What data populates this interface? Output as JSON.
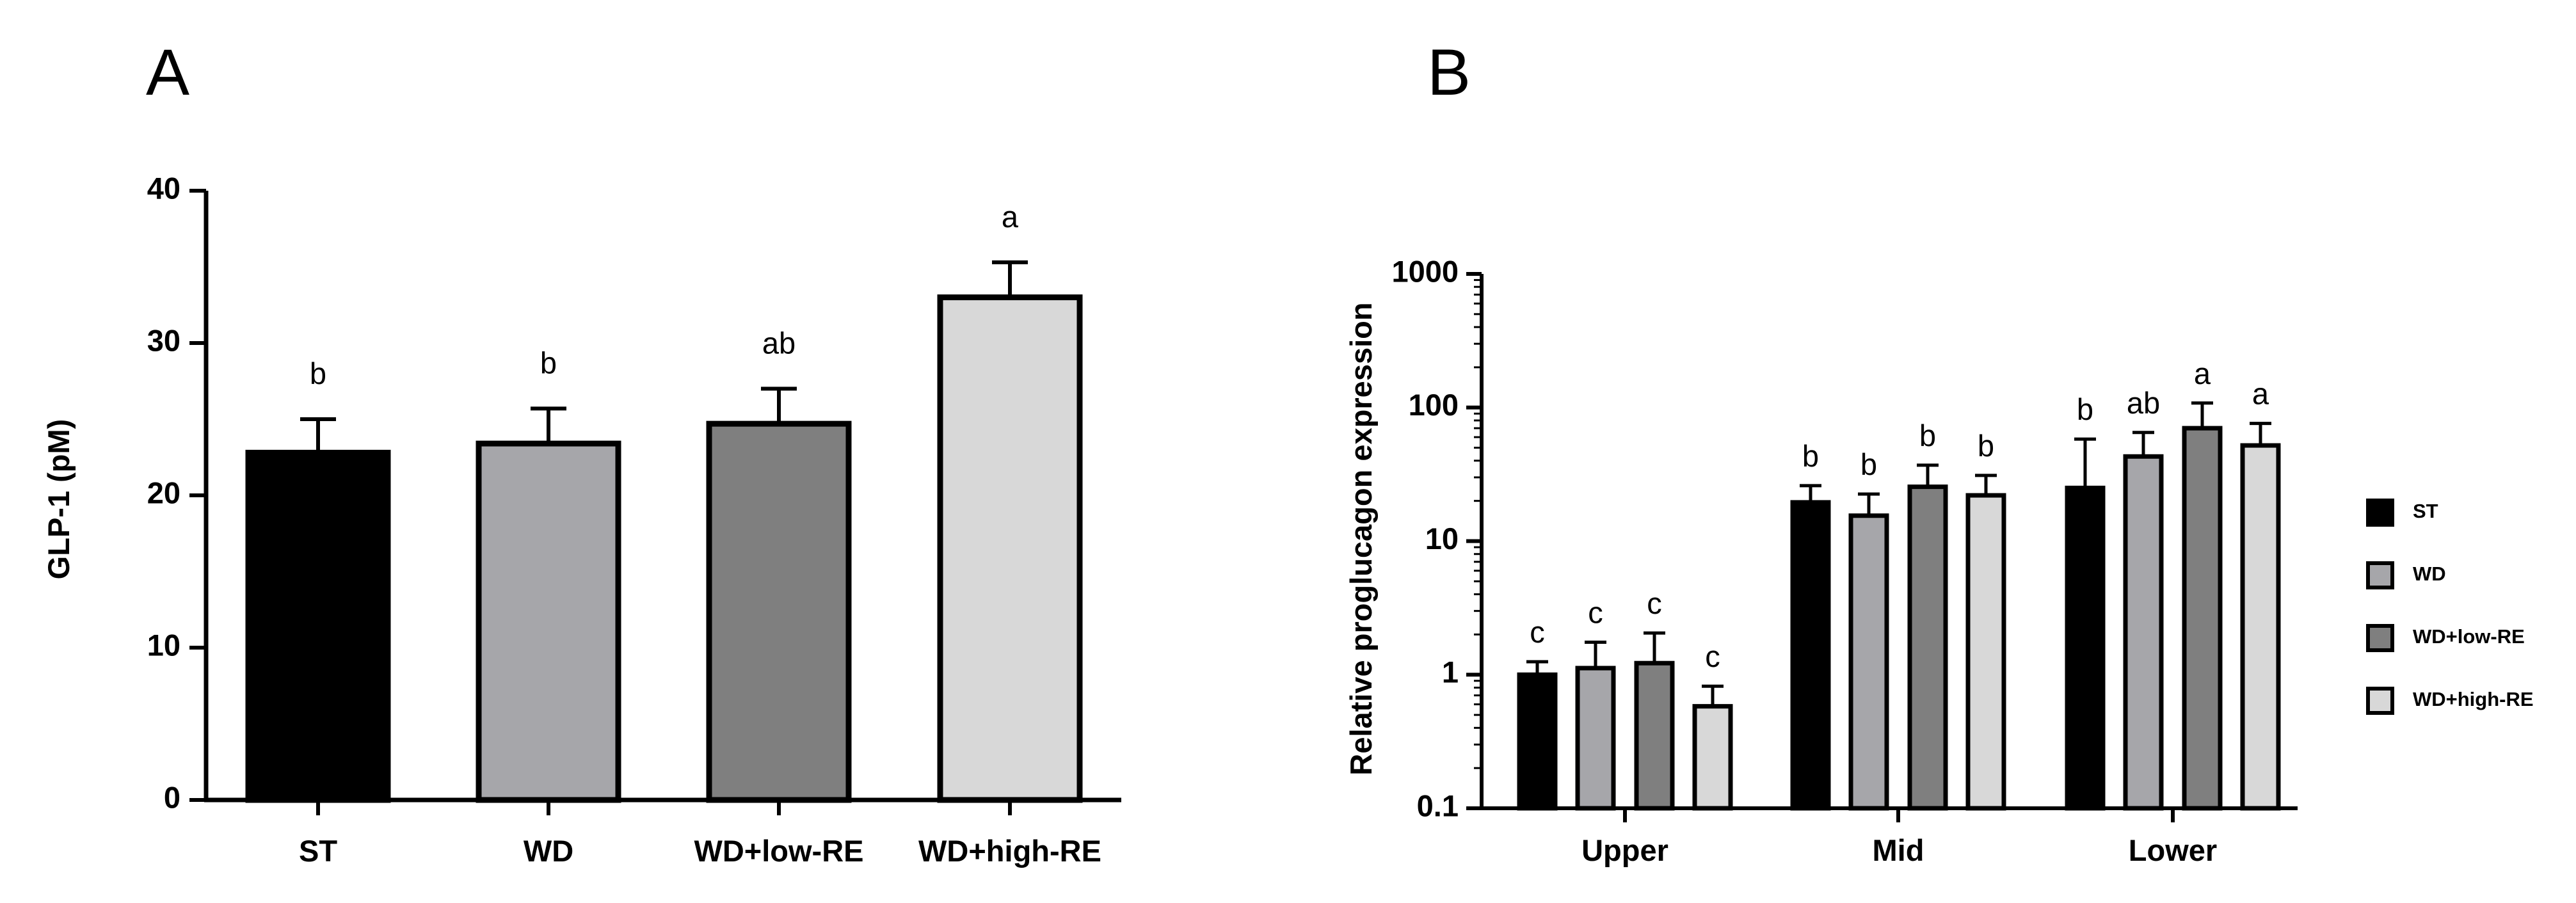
{
  "colors": {
    "ST": "#000000",
    "WD": "#a6a6aa",
    "WD+low-RE": "#7f7f7f",
    "WD+high-RE": "#d8d8d8",
    "stroke": "#000000"
  },
  "chart_data": [
    {
      "panel": "A",
      "type": "bar",
      "title": "",
      "xlabel": "",
      "ylabel": "GLP-1 (pM)",
      "ylim": [
        0,
        40
      ],
      "yticks": [
        0,
        10,
        20,
        30,
        40
      ],
      "categories": [
        "ST",
        "WD",
        "WD+low-RE",
        "WD+high-RE"
      ],
      "values": [
        22.8,
        23.4,
        24.7,
        33.0
      ],
      "errors": [
        2.2,
        2.3,
        2.3,
        2.3
      ],
      "significance": [
        "b",
        "b",
        "ab",
        "a"
      ]
    },
    {
      "panel": "B",
      "type": "bar",
      "title": "",
      "xlabel": "",
      "ylabel": "Relative proglucagon expression",
      "yscale": "log",
      "ylim": [
        0.1,
        1000
      ],
      "yticks": [
        "0.1",
        "1",
        "10",
        "100",
        "1000"
      ],
      "categories": [
        "Upper",
        "Mid",
        "Lower"
      ],
      "legend_position": "right",
      "series": [
        {
          "name": "ST",
          "values": [
            1.0,
            19.5,
            25.0
          ],
          "errors_upper": [
            1.25,
            26.0,
            58.0
          ],
          "significance": [
            "c",
            "b",
            "b"
          ]
        },
        {
          "name": "WD",
          "values": [
            1.12,
            15.5,
            43.0
          ],
          "errors_upper": [
            1.75,
            22.5,
            65.0
          ],
          "significance": [
            "c",
            "b",
            "ab"
          ]
        },
        {
          "name": "WD+low-RE",
          "values": [
            1.22,
            25.5,
            70.0
          ],
          "errors_upper": [
            2.05,
            37.0,
            108.0
          ],
          "significance": [
            "c",
            "b",
            "a"
          ]
        },
        {
          "name": "WD+high-RE",
          "values": [
            0.58,
            22.0,
            52.0
          ],
          "errors_upper": [
            0.82,
            31.0,
            76.0
          ],
          "significance": [
            "c",
            "b",
            "a"
          ]
        }
      ]
    }
  ]
}
